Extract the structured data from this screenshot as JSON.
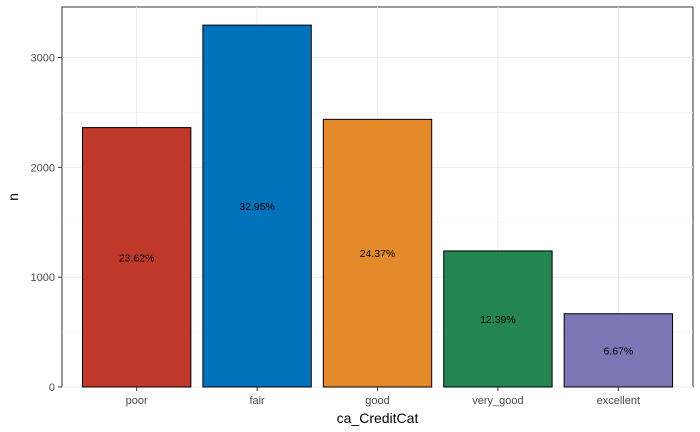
{
  "chart_data": {
    "type": "bar",
    "title": "",
    "xlabel": "ca_CreditCat",
    "ylabel": "n",
    "categories": [
      "poor",
      "fair",
      "good",
      "very_good",
      "excellent"
    ],
    "values": [
      2362,
      3295,
      2437,
      1239,
      667
    ],
    "data_labels": [
      "23.62%",
      "32.95%",
      "24.37%",
      "12.39%",
      "6.67%"
    ],
    "colors": [
      "#c0392b",
      "#0072bb",
      "#e48a2a",
      "#238551",
      "#7b77b5"
    ],
    "bar_outline": "#000000",
    "ylim": [
      0,
      3460
    ],
    "y_ticks": [
      0,
      1000,
      2000,
      3000
    ],
    "grid": true,
    "legend": "none"
  }
}
